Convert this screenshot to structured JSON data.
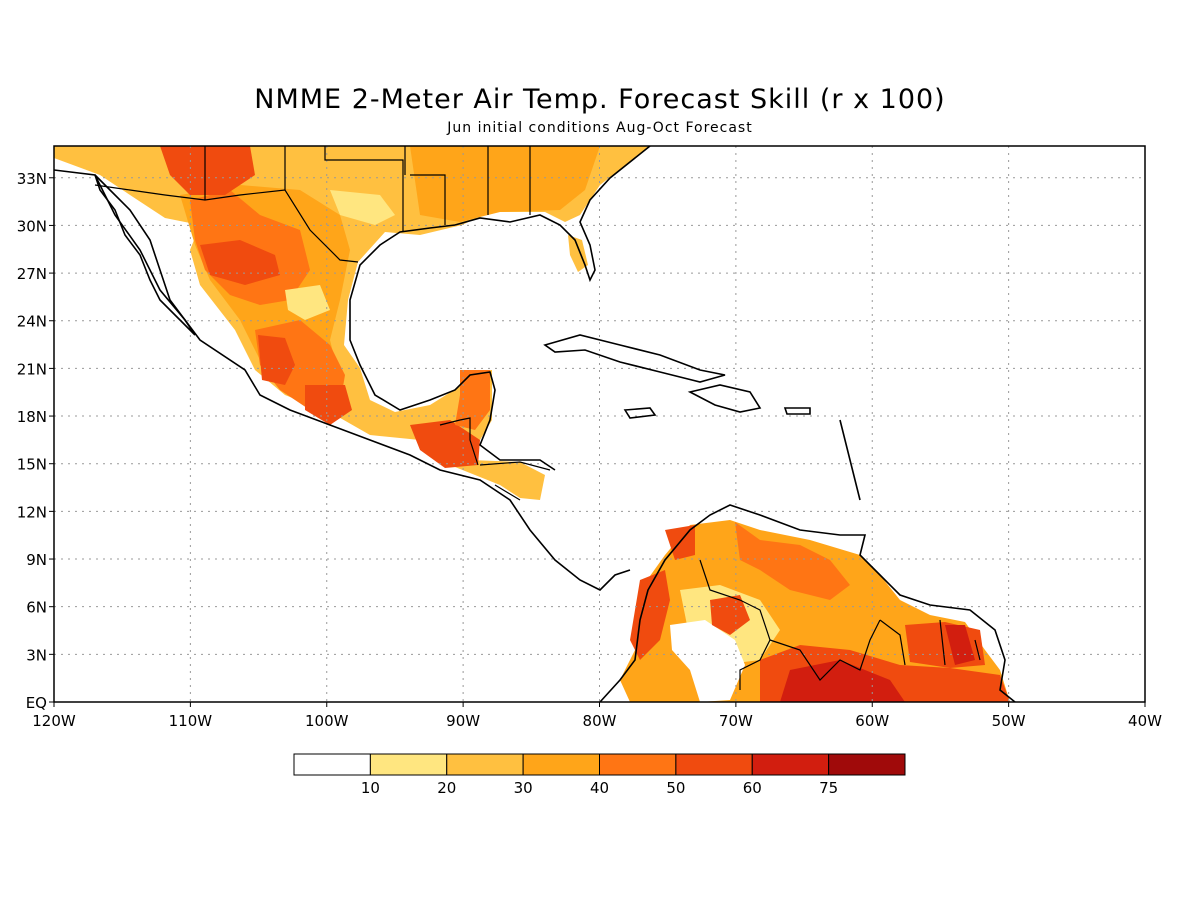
{
  "title": "NMME 2-Meter Air Temp. Forecast Skill (r x 100)",
  "subtitle": "Jun initial conditions  Aug-Oct Forecast",
  "map": {
    "lon_range": [
      -120,
      -40
    ],
    "lat_range": [
      0,
      35
    ],
    "lat_ticks": [
      {
        "value": 33,
        "label": "33N"
      },
      {
        "value": 30,
        "label": "30N"
      },
      {
        "value": 27,
        "label": "27N"
      },
      {
        "value": 24,
        "label": "24N"
      },
      {
        "value": 21,
        "label": "21N"
      },
      {
        "value": 18,
        "label": "18N"
      },
      {
        "value": 15,
        "label": "15N"
      },
      {
        "value": 12,
        "label": "12N"
      },
      {
        "value": 9,
        "label": "9N"
      },
      {
        "value": 6,
        "label": "6N"
      },
      {
        "value": 3,
        "label": "3N"
      },
      {
        "value": 0,
        "label": "EQ"
      }
    ],
    "lon_ticks": [
      {
        "value": -120,
        "label": "120W"
      },
      {
        "value": -110,
        "label": "110W"
      },
      {
        "value": -100,
        "label": "100W"
      },
      {
        "value": -90,
        "label": "90W"
      },
      {
        "value": -80,
        "label": "80W"
      },
      {
        "value": -70,
        "label": "70W"
      },
      {
        "value": -60,
        "label": "60W"
      },
      {
        "value": -50,
        "label": "50W"
      },
      {
        "value": -40,
        "label": "40W"
      }
    ],
    "grid": true
  },
  "legend": {
    "labels": [
      "10",
      "20",
      "30",
      "40",
      "50",
      "60",
      "75"
    ],
    "colors": [
      "#ffffff",
      "#ffe680",
      "#ffc040",
      "#ffa519",
      "#ff7514",
      "#f04b0f",
      "#d21e0f",
      "#a00a0a"
    ]
  }
}
